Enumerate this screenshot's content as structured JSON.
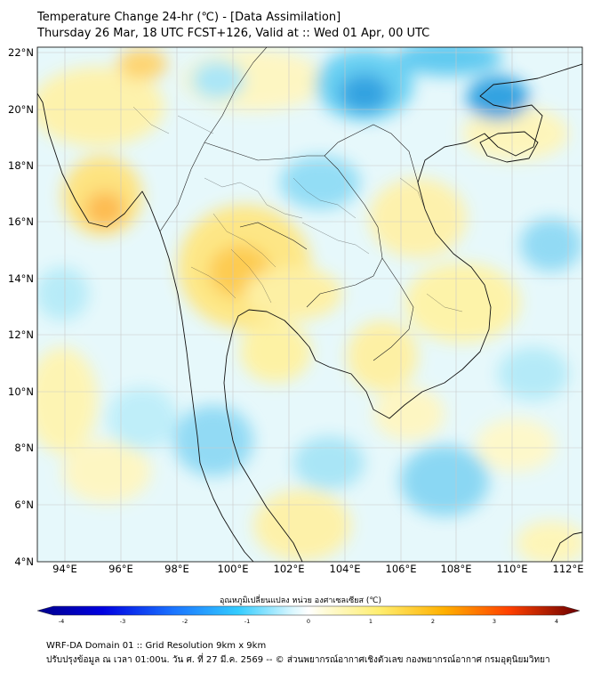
{
  "header": {
    "title_line1": "Temperature Change 24-hr (℃) - [Data Assimilation]",
    "title_line2": "Thursday 26 Mar, 18 UTC FCST+126, Valid at :: Wed 01 Apr, 00 UTC"
  },
  "map": {
    "lat_labels": [
      "22°N",
      "20°N",
      "18°N",
      "16°N",
      "14°N",
      "12°N",
      "10°N",
      "8°N",
      "6°N",
      "4°N"
    ],
    "lon_labels": [
      "94°E",
      "96°E",
      "98°E",
      "100°E",
      "102°E",
      "104°E",
      "106°E",
      "108°E",
      "110°E",
      "112°E"
    ],
    "lat_range": [
      4,
      22.3
    ],
    "lon_range": [
      93,
      112.5
    ],
    "field": "24-hr temperature change (°C)",
    "colors": {
      "background_light_blue": "#dff6fb",
      "coast": "#000000",
      "grid": "#c8c8c8"
    }
  },
  "colorbar": {
    "title": "อุณหภูมิเปลี่ยนแปลง หน่วย องศาเซลเซียส (℃)",
    "ticks": [
      "-4",
      "-3",
      "-2",
      "-1",
      "0",
      "1",
      "2",
      "3",
      "4"
    ],
    "range": [
      -4,
      4
    ],
    "colors": [
      "#00008b",
      "#0000ff",
      "#0080ff",
      "#33ccff",
      "#ccf4ff",
      "#ffffff",
      "#fff7b0",
      "#ffe14d",
      "#ffb300",
      "#ff5500",
      "#c00000",
      "#700000"
    ]
  },
  "footer": {
    "line1": "WRF-DA Domain 01 :: Grid Resolution 9km x 9km",
    "line2": "ปรับปรุงข้อมูล ณ เวลา 01:00น. วัน ศ. ที่ 27 มี.ค. 2569 -- © ส่วนพยากรณ์อากาศเชิงตัวเลข กองพยากรณ์อากาศ กรมอุตุนิยมวิทยา"
  }
}
